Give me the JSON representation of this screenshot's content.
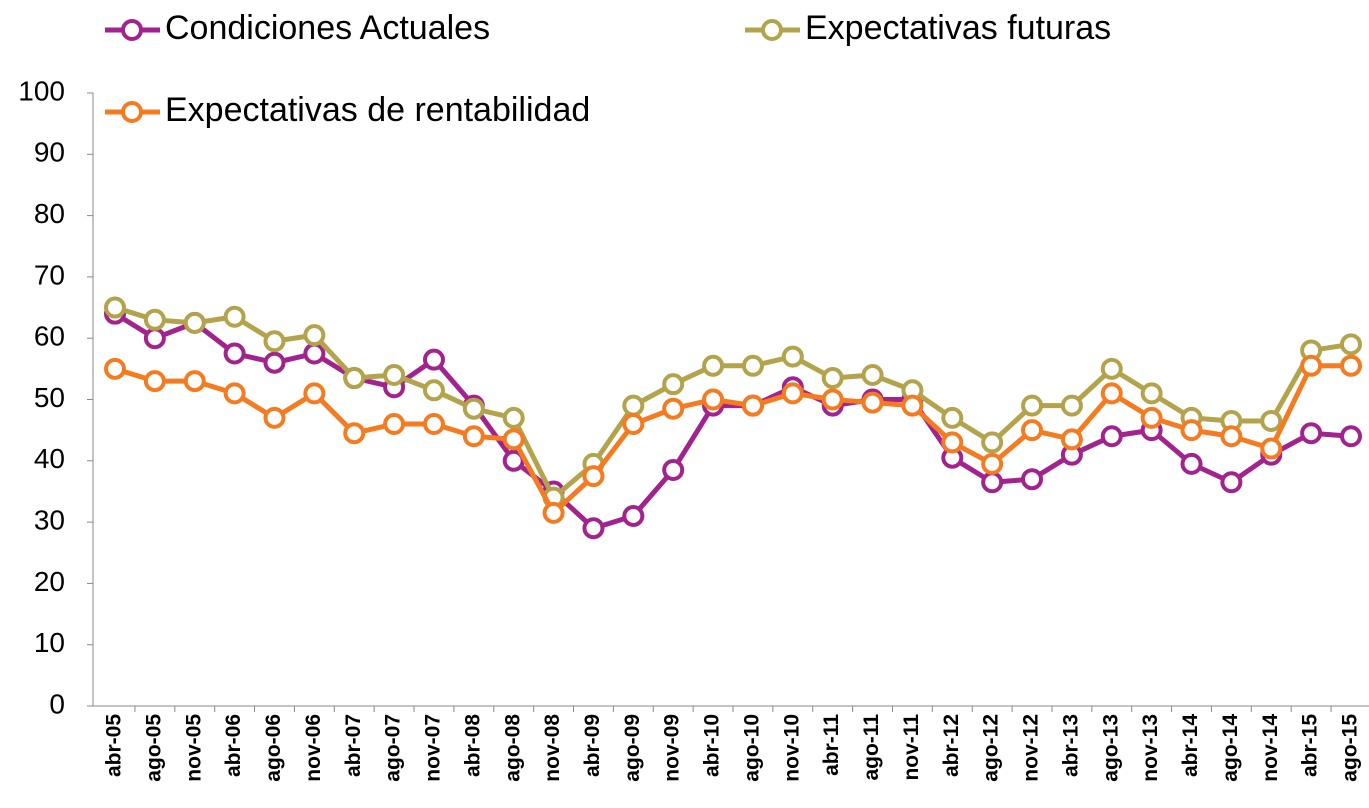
{
  "chart_data": {
    "type": "line",
    "categories": [
      "abr-05",
      "ago-05",
      "nov-05",
      "abr-06",
      "ago-06",
      "nov-06",
      "abr-07",
      "ago-07",
      "nov-07",
      "abr-08",
      "ago-08",
      "nov-08",
      "abr-09",
      "ago-09",
      "nov-09",
      "abr-10",
      "ago-10",
      "nov-10",
      "abr-11",
      "ago-11",
      "nov-11",
      "abr-12",
      "ago-12",
      "nov-12",
      "abr-13",
      "ago-13",
      "nov-13",
      "abr-14",
      "ago-14",
      "nov-14",
      "abr-15",
      "ago-15"
    ],
    "series": [
      {
        "name": "Condiciones Actuales",
        "color": "#a2228e",
        "values": [
          64,
          60,
          62.5,
          57.5,
          56,
          57.5,
          53.5,
          52,
          56.5,
          49,
          40,
          35,
          29,
          31,
          38.5,
          49,
          49,
          52,
          49,
          50,
          50,
          40.5,
          36.5,
          37,
          41,
          44,
          45,
          39.5,
          36.5,
          41,
          44.5,
          44
        ]
      },
      {
        "name": "Expectativas futuras",
        "color": "#b3a34a",
        "values": [
          65,
          63,
          62.5,
          63.5,
          59.5,
          60.5,
          53.5,
          54,
          51.5,
          48.5,
          47,
          34,
          39.5,
          49,
          52.5,
          55.5,
          55.5,
          57,
          53.5,
          54,
          51.5,
          47,
          43,
          49,
          49,
          55,
          51,
          47,
          46.5,
          46.5,
          58,
          59
        ]
      },
      {
        "name": "Expectativas de rentabilidad",
        "color": "#f47b20",
        "values": [
          55,
          53,
          53,
          51,
          47,
          51,
          44.5,
          46,
          46,
          44,
          43.5,
          31.5,
          37.5,
          46,
          48.5,
          50,
          49,
          51,
          50,
          49.5,
          49,
          43,
          39.5,
          45,
          43.5,
          51,
          47,
          45,
          44,
          42,
          55.5,
          55.5
        ]
      }
    ],
    "ylim": [
      0,
      100
    ],
    "yticks": [
      0,
      10,
      20,
      30,
      40,
      50,
      60,
      70,
      80,
      90,
      100
    ]
  }
}
